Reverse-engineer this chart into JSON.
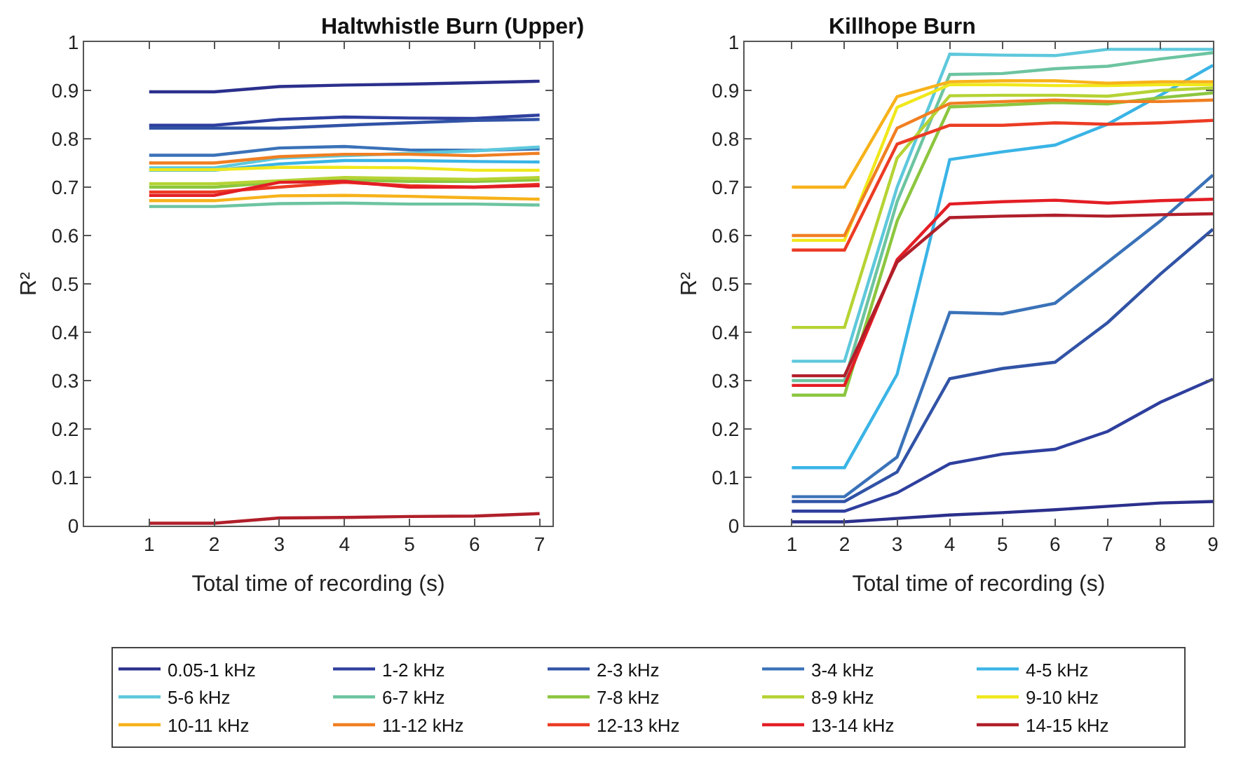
{
  "chart_data": [
    {
      "type": "line",
      "title": "Haltwhistle Burn (Upper)",
      "xlabel": "Total time of recording (s)",
      "ylabel": "R²",
      "x": [
        1,
        2,
        3,
        4,
        5,
        6,
        7
      ],
      "xlim": [
        0,
        7.2
      ],
      "xticks": [
        1,
        2,
        3,
        4,
        5,
        6,
        7
      ],
      "ylim": [
        0,
        1
      ],
      "yticks": [
        0,
        0.1,
        0.2,
        0.3,
        0.4,
        0.5,
        0.6,
        0.7,
        0.8,
        0.9,
        1
      ],
      "legend": "bottom",
      "marker": "none",
      "line_style": "solid",
      "series": [
        {
          "name": "0.05-1 kHz",
          "color": "#2b2f8c",
          "values": [
            0.897,
            0.897,
            0.908,
            0.911,
            0.913,
            0.916,
            0.919
          ]
        },
        {
          "name": "1-2 kHz",
          "color": "#2e3f9e",
          "values": [
            0.828,
            0.828,
            0.84,
            0.845,
            0.843,
            0.842,
            0.849
          ]
        },
        {
          "name": "2-3 kHz",
          "color": "#3153a6",
          "values": [
            0.822,
            0.822,
            0.822,
            0.828,
            0.833,
            0.838,
            0.84
          ]
        },
        {
          "name": "3-4 kHz",
          "color": "#3a72b8",
          "values": [
            0.766,
            0.766,
            0.781,
            0.784,
            0.777,
            0.776,
            0.779
          ]
        },
        {
          "name": "4-5 kHz",
          "color": "#3ab4e6",
          "values": [
            0.735,
            0.735,
            0.748,
            0.755,
            0.755,
            0.753,
            0.752
          ]
        },
        {
          "name": "5-6 kHz",
          "color": "#5ec8dc",
          "values": [
            0.74,
            0.74,
            0.76,
            0.765,
            0.77,
            0.775,
            0.783
          ]
        },
        {
          "name": "6-7 kHz",
          "color": "#6cc4a0",
          "values": [
            0.66,
            0.66,
            0.666,
            0.667,
            0.665,
            0.665,
            0.663
          ]
        },
        {
          "name": "7-8 kHz",
          "color": "#8cc63f",
          "values": [
            0.7,
            0.7,
            0.71,
            0.715,
            0.712,
            0.712,
            0.715
          ]
        },
        {
          "name": "8-9 kHz",
          "color": "#b5d334",
          "values": [
            0.707,
            0.707,
            0.713,
            0.72,
            0.718,
            0.716,
            0.72
          ]
        },
        {
          "name": "9-10 kHz",
          "color": "#f0e81c",
          "values": [
            0.736,
            0.736,
            0.741,
            0.741,
            0.74,
            0.735,
            0.735
          ]
        },
        {
          "name": "10-11 kHz",
          "color": "#f7b21a",
          "values": [
            0.672,
            0.672,
            0.682,
            0.683,
            0.681,
            0.678,
            0.675
          ]
        },
        {
          "name": "11-12 kHz",
          "color": "#f07f22",
          "values": [
            0.75,
            0.75,
            0.763,
            0.768,
            0.768,
            0.765,
            0.77
          ]
        },
        {
          "name": "12-13 kHz",
          "color": "#ec3b24",
          "values": [
            0.69,
            0.69,
            0.7,
            0.71,
            0.703,
            0.7,
            0.706
          ]
        },
        {
          "name": "13-14 kHz",
          "color": "#e31e25",
          "values": [
            0.683,
            0.683,
            0.71,
            0.712,
            0.7,
            0.7,
            0.703
          ]
        },
        {
          "name": "14-15 kHz",
          "color": "#b01f2a",
          "values": [
            0.005,
            0.005,
            0.016,
            0.017,
            0.019,
            0.02,
            0.025
          ]
        }
      ]
    },
    {
      "type": "line",
      "title": "Killhope Burn",
      "xlabel": "Total time of recording (s)",
      "ylabel": "R²",
      "x": [
        1,
        2,
        3,
        4,
        5,
        6,
        7,
        8,
        9
      ],
      "xlim": [
        0.1,
        9
      ],
      "xticks": [
        1,
        2,
        3,
        4,
        5,
        6,
        7,
        8,
        9
      ],
      "ylim": [
        0,
        1
      ],
      "yticks": [
        0,
        0.1,
        0.2,
        0.3,
        0.4,
        0.5,
        0.6,
        0.7,
        0.8,
        0.9,
        1
      ],
      "legend": "bottom",
      "marker": "none",
      "line_style": "solid",
      "series": [
        {
          "name": "0.05-1 kHz",
          "color": "#2b2f8c",
          "values": [
            0.008,
            0.008,
            0.015,
            0.022,
            0.027,
            0.033,
            0.04,
            0.047,
            0.05
          ]
        },
        {
          "name": "1-2 kHz",
          "color": "#2e3f9e",
          "values": [
            0.03,
            0.03,
            0.068,
            0.128,
            0.148,
            0.158,
            0.195,
            0.255,
            0.303
          ]
        },
        {
          "name": "2-3 kHz",
          "color": "#3153a6",
          "values": [
            0.05,
            0.05,
            0.111,
            0.304,
            0.325,
            0.338,
            0.42,
            0.52,
            0.613
          ]
        },
        {
          "name": "3-4 kHz",
          "color": "#3a72b8",
          "values": [
            0.06,
            0.06,
            0.142,
            0.441,
            0.438,
            0.46,
            0.545,
            0.63,
            0.725
          ]
        },
        {
          "name": "4-5 kHz",
          "color": "#3ab4e6",
          "values": [
            0.12,
            0.12,
            0.313,
            0.757,
            0.773,
            0.787,
            0.83,
            0.89,
            0.952
          ]
        },
        {
          "name": "5-6 kHz",
          "color": "#5ec8dc",
          "values": [
            0.34,
            0.34,
            0.7,
            0.975,
            0.973,
            0.972,
            0.985,
            0.985,
            0.985
          ]
        },
        {
          "name": "6-7 kHz",
          "color": "#6cc4a0",
          "values": [
            0.3,
            0.3,
            0.67,
            0.933,
            0.935,
            0.945,
            0.95,
            0.965,
            0.978
          ]
        },
        {
          "name": "7-8 kHz",
          "color": "#8cc63f",
          "values": [
            0.27,
            0.27,
            0.63,
            0.866,
            0.87,
            0.875,
            0.872,
            0.885,
            0.895
          ]
        },
        {
          "name": "8-9 kHz",
          "color": "#b5d334",
          "values": [
            0.41,
            0.41,
            0.76,
            0.889,
            0.89,
            0.89,
            0.888,
            0.9,
            0.905
          ]
        },
        {
          "name": "9-10 kHz",
          "color": "#f0e81c",
          "values": [
            0.59,
            0.59,
            0.865,
            0.912,
            0.912,
            0.91,
            0.91,
            0.912,
            0.912
          ]
        },
        {
          "name": "10-11 kHz",
          "color": "#f7b21a",
          "values": [
            0.7,
            0.7,
            0.887,
            0.918,
            0.92,
            0.92,
            0.915,
            0.918,
            0.918
          ]
        },
        {
          "name": "11-12 kHz",
          "color": "#f07f22",
          "values": [
            0.6,
            0.6,
            0.822,
            0.873,
            0.877,
            0.88,
            0.877,
            0.877,
            0.88
          ]
        },
        {
          "name": "12-13 kHz",
          "color": "#ec3b24",
          "values": [
            0.57,
            0.57,
            0.789,
            0.828,
            0.828,
            0.833,
            0.83,
            0.833,
            0.838
          ]
        },
        {
          "name": "13-14 kHz",
          "color": "#e31e25",
          "values": [
            0.29,
            0.29,
            0.55,
            0.665,
            0.67,
            0.673,
            0.667,
            0.672,
            0.675
          ]
        },
        {
          "name": "14-15 kHz",
          "color": "#b01f2a",
          "values": [
            0.31,
            0.31,
            0.545,
            0.637,
            0.64,
            0.642,
            0.64,
            0.643,
            0.645
          ]
        }
      ]
    }
  ]
}
